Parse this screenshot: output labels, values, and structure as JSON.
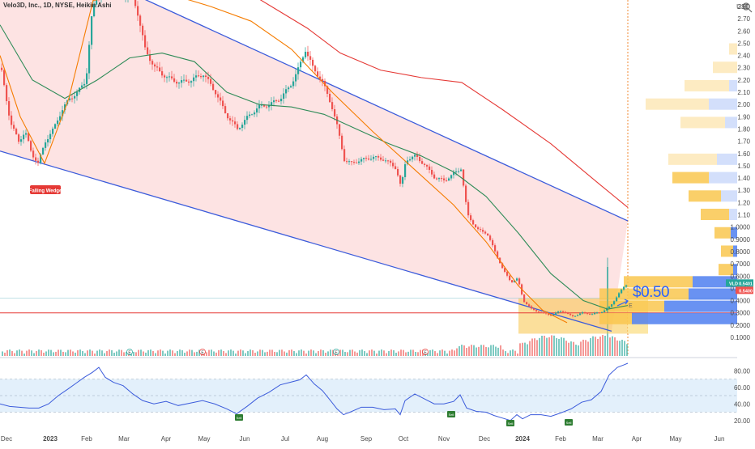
{
  "header": {
    "title": "Velo3D, Inc., 1D, NYSE, Heikin Ashi"
  },
  "axes": {
    "price_ticks": [
      "USD",
      "2.80",
      "2.70",
      "2.60",
      "2.50",
      "2.40",
      "2.30",
      "2.20",
      "2.10",
      "2.00",
      "1.90",
      "1.80",
      "1.70",
      "1.60",
      "1.50",
      "1.40",
      "1.30",
      "1.20",
      "1.10",
      "1.0000",
      "0.9000",
      "0.8000",
      "0.7000",
      "0.6000",
      "0.5000",
      "0.4000",
      "0.3000",
      "0.2000",
      "0.1000"
    ],
    "rsi_ticks": [
      "80.00",
      "60.00",
      "40.00",
      "20.00"
    ],
    "time_ticks": [
      "Dec",
      "2023",
      "Feb",
      "Mar",
      "Apr",
      "May",
      "Jun",
      "Jul",
      "Aug",
      "Sep",
      "Oct",
      "Nov",
      "Dec",
      "2024",
      "Feb",
      "Mar",
      "Apr",
      "May",
      "Jun"
    ]
  },
  "labels": {
    "pattern": "Falling Wedge",
    "target_price": "$0.50",
    "ticker_badge": "VLD",
    "last_price": "0.5401",
    "last_price2": "0.5400",
    "flag_glyph": "E",
    "hist_marker": "E",
    "sell_badges": [
      "Sell",
      "Sell",
      "Sell",
      "Sell"
    ]
  },
  "colors": {
    "wedge_fill": "#fde0e0",
    "up_candle": "#26a69a",
    "down_candle": "#ef5350",
    "trend_line": "#3b5bdb",
    "ma_red": "#e53935",
    "ma_green": "#2e8b57",
    "trend_orange": "#f57c00",
    "rsi_line": "#3b5bdb",
    "rsi_band": "#e3f0fb",
    "vp_blue": "#4f7ff0",
    "vp_yellow": "#f9c74f",
    "accent_blue": "#2962ff"
  },
  "chart_data": {
    "type": "candlestick",
    "symbol": "Velo3D, Inc.",
    "exchange": "NYSE",
    "interval": "1D",
    "style": "Heikin Ashi",
    "price_axis": {
      "min": 0.1,
      "max": 2.8,
      "unit": "USD"
    },
    "rsi_axis": {
      "min": 10,
      "max": 90
    },
    "time_range": [
      "Dec 2022",
      "Jun 2024"
    ],
    "price_path": [
      [
        0,
        2.3
      ],
      [
        12,
        1.85
      ],
      [
        22,
        1.7
      ],
      [
        30,
        1.78
      ],
      [
        38,
        1.6
      ],
      [
        46,
        1.52
      ],
      [
        55,
        1.7
      ],
      [
        65,
        1.8
      ],
      [
        75,
        1.95
      ],
      [
        85,
        2.05
      ],
      [
        95,
        2.1
      ],
      [
        105,
        2.2
      ],
      [
        112,
        2.7
      ],
      [
        118,
        2.9
      ],
      [
        130,
        2.95
      ],
      [
        148,
        2.9
      ],
      [
        160,
        2.92
      ],
      [
        168,
        2.78
      ],
      [
        178,
        2.45
      ],
      [
        190,
        2.3
      ],
      [
        205,
        2.22
      ],
      [
        220,
        2.18
      ],
      [
        235,
        2.2
      ],
      [
        250,
        2.25
      ],
      [
        265,
        2.1
      ],
      [
        278,
        1.92
      ],
      [
        292,
        1.8
      ],
      [
        305,
        1.9
      ],
      [
        318,
        1.98
      ],
      [
        332,
        2.0
      ],
      [
        345,
        2.05
      ],
      [
        357,
        2.15
      ],
      [
        368,
        2.3
      ],
      [
        376,
        2.45
      ],
      [
        385,
        2.3
      ],
      [
        396,
        2.2
      ],
      [
        408,
        2.0
      ],
      [
        416,
        1.8
      ],
      [
        424,
        1.55
      ],
      [
        432,
        1.52
      ],
      [
        446,
        1.55
      ],
      [
        460,
        1.57
      ],
      [
        474,
        1.55
      ],
      [
        488,
        1.48
      ],
      [
        494,
        1.32
      ],
      [
        500,
        1.55
      ],
      [
        512,
        1.58
      ],
      [
        524,
        1.5
      ],
      [
        536,
        1.4
      ],
      [
        548,
        1.38
      ],
      [
        560,
        1.44
      ],
      [
        568,
        1.48
      ],
      [
        576,
        1.1
      ],
      [
        588,
        0.98
      ],
      [
        600,
        0.95
      ],
      [
        610,
        0.8
      ],
      [
        620,
        0.65
      ],
      [
        630,
        0.55
      ],
      [
        638,
        0.58
      ],
      [
        645,
        0.4
      ],
      [
        655,
        0.33
      ],
      [
        668,
        0.3
      ],
      [
        680,
        0.28
      ],
      [
        692,
        0.32
      ],
      [
        705,
        0.27
      ],
      [
        718,
        0.3
      ],
      [
        730,
        0.29
      ],
      [
        742,
        0.31
      ],
      [
        752,
        0.35
      ],
      [
        762,
        0.45
      ],
      [
        770,
        0.52
      ],
      [
        775,
        0.54
      ]
    ],
    "series": [
      {
        "name": "",
        "color": "#e53935",
        "points": [
          [
            290,
            2.98
          ],
          [
            340,
            2.78
          ],
          [
            380,
            2.62
          ],
          [
            420,
            2.42
          ],
          [
            470,
            2.28
          ],
          [
            520,
            2.22
          ],
          [
            570,
            2.18
          ],
          [
            620,
            1.96
          ],
          [
            680,
            1.68
          ],
          [
            740,
            1.35
          ],
          [
            775,
            1.16
          ]
        ]
      },
      {
        "name": "",
        "color": "#2e8b57",
        "points": [
          [
            0,
            2.65
          ],
          [
            40,
            2.2
          ],
          [
            80,
            2.05
          ],
          [
            120,
            2.2
          ],
          [
            160,
            2.38
          ],
          [
            200,
            2.42
          ],
          [
            240,
            2.35
          ],
          [
            280,
            2.1
          ],
          [
            320,
            2.0
          ],
          [
            360,
            1.98
          ],
          [
            400,
            1.92
          ],
          [
            440,
            1.8
          ],
          [
            480,
            1.68
          ],
          [
            520,
            1.58
          ],
          [
            560,
            1.45
          ],
          [
            600,
            1.25
          ],
          [
            640,
            0.95
          ],
          [
            680,
            0.62
          ],
          [
            720,
            0.4
          ],
          [
            750,
            0.33
          ],
          [
            775,
            0.36
          ]
        ]
      },
      {
        "name": "",
        "color": "#f57c00",
        "points": [
          [
            0,
            2.4
          ],
          [
            25,
            1.9
          ],
          [
            55,
            1.52
          ],
          [
            85,
            2.05
          ],
          [
            115,
            2.85
          ],
          [
            165,
            2.9
          ],
          [
            210,
            2.9
          ],
          [
            260,
            2.8
          ],
          [
            310,
            2.68
          ],
          [
            360,
            2.45
          ],
          [
            410,
            2.1
          ],
          [
            460,
            1.78
          ],
          [
            510,
            1.48
          ],
          [
            560,
            1.18
          ],
          [
            600,
            0.88
          ],
          [
            640,
            0.52
          ],
          [
            670,
            0.32
          ],
          [
            700,
            0.22
          ]
        ]
      }
    ],
    "wedge": {
      "upper": [
        [
          0,
          3.4
        ],
        [
          775,
          1.05
        ]
      ],
      "lower": [
        [
          0,
          1.62
        ],
        [
          755,
          0.15
        ]
      ]
    },
    "horizontal_level": 0.3,
    "target_level": 0.5,
    "rsi": [
      [
        0,
        40
      ],
      [
        12,
        37
      ],
      [
        24,
        36
      ],
      [
        36,
        35
      ],
      [
        48,
        35
      ],
      [
        60,
        40
      ],
      [
        72,
        50
      ],
      [
        84,
        58
      ],
      [
        94,
        65
      ],
      [
        104,
        72
      ],
      [
        114,
        78
      ],
      [
        122,
        84
      ],
      [
        130,
        72
      ],
      [
        140,
        66
      ],
      [
        152,
        62
      ],
      [
        164,
        52
      ],
      [
        176,
        44
      ],
      [
        190,
        40
      ],
      [
        205,
        43
      ],
      [
        220,
        38
      ],
      [
        235,
        41
      ],
      [
        250,
        44
      ],
      [
        265,
        40
      ],
      [
        280,
        34
      ],
      [
        292,
        28
      ],
      [
        305,
        37
      ],
      [
        318,
        47
      ],
      [
        332,
        54
      ],
      [
        346,
        63
      ],
      [
        358,
        66
      ],
      [
        370,
        69
      ],
      [
        378,
        75
      ],
      [
        388,
        64
      ],
      [
        398,
        56
      ],
      [
        408,
        44
      ],
      [
        416,
        34
      ],
      [
        424,
        27
      ],
      [
        432,
        30
      ],
      [
        446,
        36
      ],
      [
        460,
        36
      ],
      [
        474,
        33
      ],
      [
        488,
        34
      ],
      [
        494,
        27
      ],
      [
        500,
        44
      ],
      [
        512,
        52
      ],
      [
        524,
        46
      ],
      [
        536,
        40
      ],
      [
        548,
        40
      ],
      [
        560,
        43
      ],
      [
        568,
        51
      ],
      [
        576,
        35
      ],
      [
        588,
        31
      ],
      [
        600,
        30
      ],
      [
        610,
        26
      ],
      [
        620,
        23
      ],
      [
        630,
        20
      ],
      [
        638,
        27
      ],
      [
        645,
        22
      ],
      [
        655,
        27
      ],
      [
        668,
        27
      ],
      [
        680,
        25
      ],
      [
        692,
        29
      ],
      [
        705,
        34
      ],
      [
        718,
        42
      ],
      [
        730,
        45
      ],
      [
        742,
        55
      ],
      [
        752,
        75
      ],
      [
        762,
        84
      ],
      [
        770,
        87
      ],
      [
        775,
        89
      ]
    ],
    "rsi_band": [
      30,
      70
    ],
    "volume_profile": [
      {
        "price": 2.45,
        "blue": 0,
        "yellow": 10
      },
      {
        "price": 2.3,
        "blue": 0,
        "yellow": 30
      },
      {
        "price": 2.15,
        "blue": 10,
        "yellow": 55
      },
      {
        "price": 2.0,
        "blue": 35,
        "yellow": 78
      },
      {
        "price": 1.85,
        "blue": 15,
        "yellow": 55
      },
      {
        "price": 1.55,
        "blue": 25,
        "yellow": 60
      },
      {
        "price": 1.4,
        "blue": 35,
        "yellow": 45
      },
      {
        "price": 1.25,
        "blue": 20,
        "yellow": 40
      },
      {
        "price": 1.1,
        "blue": 10,
        "yellow": 35
      },
      {
        "price": 0.95,
        "blue": 8,
        "yellow": 20
      },
      {
        "price": 0.8,
        "blue": 5,
        "yellow": 15
      },
      {
        "price": 0.65,
        "blue": 5,
        "yellow": 18
      },
      {
        "price": 0.55,
        "blue": 55,
        "yellow": 85
      },
      {
        "price": 0.45,
        "blue": 60,
        "yellow": 110
      },
      {
        "price": 0.35,
        "blue": 90,
        "yellow": 80
      },
      {
        "price": 0.25,
        "blue": 130,
        "yellow": 40
      }
    ]
  }
}
